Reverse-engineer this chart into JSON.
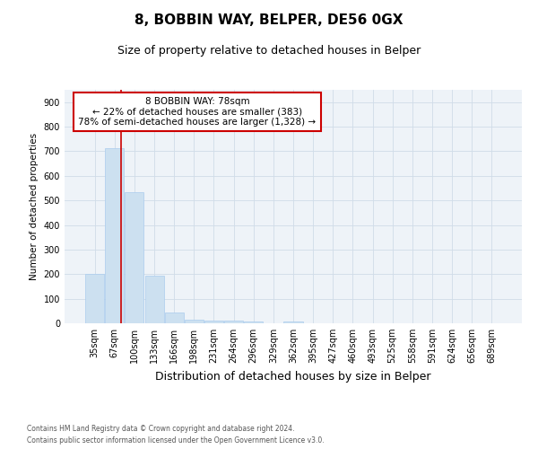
{
  "title1": "8, BOBBIN WAY, BELPER, DE56 0GX",
  "title2": "Size of property relative to detached houses in Belper",
  "xlabel": "Distribution of detached houses by size in Belper",
  "ylabel": "Number of detached properties",
  "bins": [
    "35sqm",
    "67sqm",
    "100sqm",
    "133sqm",
    "166sqm",
    "198sqm",
    "231sqm",
    "264sqm",
    "296sqm",
    "329sqm",
    "362sqm",
    "395sqm",
    "427sqm",
    "460sqm",
    "493sqm",
    "525sqm",
    "558sqm",
    "591sqm",
    "624sqm",
    "656sqm",
    "689sqm"
  ],
  "values": [
    202,
    712,
    533,
    192,
    44,
    16,
    12,
    11,
    9,
    0,
    8,
    0,
    0,
    0,
    0,
    0,
    0,
    0,
    0,
    0,
    0
  ],
  "bar_color": "#cce0f0",
  "bar_edge_color": "#aaccee",
  "annotation_text": "8 BOBBIN WAY: 78sqm\n← 22% of detached houses are smaller (383)\n78% of semi-detached houses are larger (1,328) →",
  "annotation_box_color": "#ffffff",
  "annotation_border_color": "#cc0000",
  "vline_color": "#cc0000",
  "grid_color": "#d0dce8",
  "background_color": "#eef3f8",
  "footnote1": "Contains HM Land Registry data © Crown copyright and database right 2024.",
  "footnote2": "Contains public sector information licensed under the Open Government Licence v3.0.",
  "ylim": [
    0,
    950
  ],
  "yticks": [
    0,
    100,
    200,
    300,
    400,
    500,
    600,
    700,
    800,
    900
  ],
  "title1_fontsize": 11,
  "title2_fontsize": 9,
  "xlabel_fontsize": 9,
  "ylabel_fontsize": 7.5,
  "tick_fontsize": 7,
  "annotation_fontsize": 7.5,
  "footnote_fontsize": 5.5,
  "line_x_index": 1.333
}
